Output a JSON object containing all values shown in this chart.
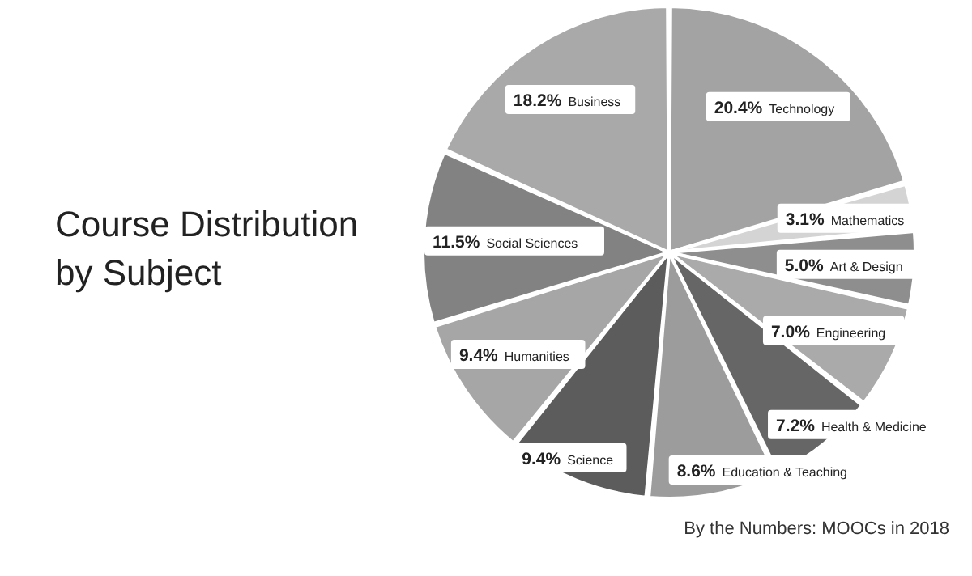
{
  "chart_data": {
    "type": "pie",
    "title": "Course Distribution by Subject",
    "annotations": [
      "By the Numbers: MOOCs in 2018"
    ],
    "categories": [
      "Technology",
      "Mathematics",
      "Art & Design",
      "Engineering",
      "Health & Medicine",
      "Education & Teaching",
      "Science",
      "Humanities",
      "Social Sciences",
      "Business"
    ],
    "values": [
      20.4,
      3.1,
      5.0,
      7.0,
      7.2,
      8.6,
      9.4,
      9.4,
      11.5,
      18.2
    ],
    "value_labels": [
      "20.4%",
      "3.1%",
      "5.0%",
      "7.0%",
      "7.2%",
      "8.6%",
      "9.4%",
      "9.4%",
      "11.5%",
      "18.2%"
    ],
    "colors": [
      "#a3a3a3",
      "#d4d4d4",
      "#8e8e8e",
      "#aaaaaa",
      "#666666",
      "#9c9c9c",
      "#5c5c5c",
      "#a6a6a6",
      "#828282",
      "#a9a9a9"
    ]
  }
}
